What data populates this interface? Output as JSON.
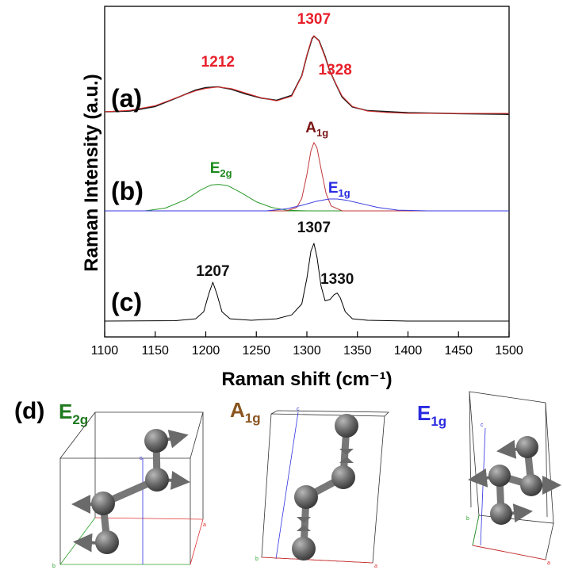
{
  "chart_data": {
    "type": "line",
    "xlabel": "Raman shift (cm⁻¹)",
    "ylabel": "Raman Intensity (a.u.)",
    "xlim": [
      1100,
      1500
    ],
    "xticks": [
      "1100",
      "1150",
      "1200",
      "1250",
      "1300",
      "1350",
      "1400",
      "1450",
      "1500"
    ],
    "grid": false,
    "panels": [
      {
        "label": "(a)",
        "series": [
          {
            "kind": "experimental",
            "color": "#1a1a1a",
            "x": [
              1100,
              1125,
              1150,
              1175,
              1190,
              1200,
              1212,
              1225,
              1240,
              1255,
              1270,
              1285,
              1295,
              1300,
              1305,
              1307,
              1312,
              1318,
              1322,
              1328,
              1335,
              1345,
              1360,
              1380,
              1400,
              1450,
              1500
            ],
            "y": [
              0.02,
              0.04,
              0.1,
              0.22,
              0.29,
              0.32,
              0.34,
              0.32,
              0.26,
              0.2,
              0.16,
              0.22,
              0.48,
              0.75,
              0.97,
              1.0,
              0.93,
              0.72,
              0.56,
              0.4,
              0.22,
              0.09,
              0.03,
              0.01,
              0.0,
              0.0,
              0.0
            ]
          },
          {
            "kind": "fit",
            "color": "#e03030",
            "x": [
              1100,
              1125,
              1150,
              1175,
              1190,
              1200,
              1212,
              1225,
              1240,
              1255,
              1270,
              1285,
              1295,
              1300,
              1305,
              1307,
              1312,
              1318,
              1322,
              1328,
              1335,
              1345,
              1360,
              1380,
              1400,
              1450,
              1500
            ],
            "y": [
              0.02,
              0.04,
              0.1,
              0.22,
              0.29,
              0.32,
              0.34,
              0.32,
              0.26,
              0.2,
              0.16,
              0.22,
              0.48,
              0.75,
              0.97,
              1.0,
              0.93,
              0.72,
              0.56,
              0.4,
              0.22,
              0.09,
              0.03,
              0.01,
              0.0,
              0.0,
              0.0
            ]
          }
        ],
        "annotations": [
          {
            "text": "1212",
            "x": 1212,
            "color": "#e8202a"
          },
          {
            "text": "1307",
            "x": 1307,
            "color": "#e8202a"
          },
          {
            "text": "1328",
            "x": 1328,
            "color": "#e8202a"
          }
        ]
      },
      {
        "label": "(b)",
        "series": [
          {
            "name": "E2g",
            "color": "#2a9a2a",
            "x": [
              1100,
              1140,
              1160,
              1180,
              1195,
              1205,
              1213,
              1222,
              1235,
              1250,
              1265,
              1280,
              1300,
              1330,
              1400,
              1500
            ],
            "y": [
              0,
              0,
              0.04,
              0.16,
              0.3,
              0.37,
              0.38,
              0.36,
              0.26,
              0.13,
              0.05,
              0.01,
              0,
              0,
              0,
              0
            ]
          },
          {
            "name": "A1g",
            "color": "#c0383a",
            "x": [
              1100,
              1280,
              1290,
              1295,
              1300,
              1304,
              1307,
              1310,
              1314,
              1319,
              1324,
              1335,
              1500
            ],
            "y": [
              0,
              0,
              0.05,
              0.18,
              0.52,
              0.86,
              0.98,
              0.9,
              0.6,
              0.25,
              0.07,
              0,
              0
            ]
          },
          {
            "name": "E1g",
            "color": "#3a3ae0",
            "x": [
              1100,
              1260,
              1280,
              1295,
              1310,
              1322,
              1330,
              1340,
              1355,
              1370,
              1390,
              1420,
              1500
            ],
            "y": [
              0,
              0,
              0.03,
              0.08,
              0.14,
              0.17,
              0.17,
              0.15,
              0.1,
              0.05,
              0.01,
              0,
              0
            ]
          }
        ],
        "annotations": [
          {
            "base": "E",
            "sub": "2g",
            "x": 1215,
            "color": "#1e8a1e"
          },
          {
            "base": "A",
            "sub": "1g",
            "x": 1310,
            "color": "#7a1414"
          },
          {
            "base": "E",
            "sub": "1g",
            "x": 1332,
            "color": "#2a2ae0"
          }
        ]
      },
      {
        "label": "(c)",
        "series": [
          {
            "color": "#000000",
            "x": [
              1100,
              1170,
              1190,
              1198,
              1203,
              1207,
              1211,
              1216,
              1224,
              1245,
              1270,
              1285,
              1295,
              1300,
              1304,
              1307,
              1310,
              1314,
              1318,
              1323,
              1327,
              1330,
              1333,
              1338,
              1345,
              1360,
              1400,
              1500
            ],
            "y": [
              0,
              0.005,
              0.03,
              0.12,
              0.35,
              0.5,
              0.35,
              0.12,
              0.03,
              0.01,
              0.03,
              0.08,
              0.22,
              0.55,
              0.9,
              1.0,
              0.82,
              0.45,
              0.26,
              0.28,
              0.34,
              0.36,
              0.3,
              0.12,
              0.03,
              0.01,
              0,
              0
            ]
          }
        ],
        "annotations": [
          {
            "text": "1207",
            "x": 1207,
            "color": "#111111"
          },
          {
            "text": "1307",
            "x": 1307,
            "color": "#111111"
          },
          {
            "text": "1330",
            "x": 1330,
            "color": "#111111"
          }
        ]
      }
    ]
  },
  "modes_panel": {
    "label": "(d)",
    "modes": [
      {
        "base": "E",
        "sub": "2g",
        "color": "#1e7a1e"
      },
      {
        "base": "A",
        "sub": "1g",
        "color": "#8a5520"
      },
      {
        "base": "E",
        "sub": "1g",
        "color": "#2a2ae0"
      }
    ],
    "axis_letters": [
      "a",
      "b",
      "c"
    ],
    "colors": {
      "atom": "#6e6e6e",
      "cell_a": "#e23030",
      "cell_b": "#2aa02a",
      "cell_c": "#3030e0"
    }
  }
}
